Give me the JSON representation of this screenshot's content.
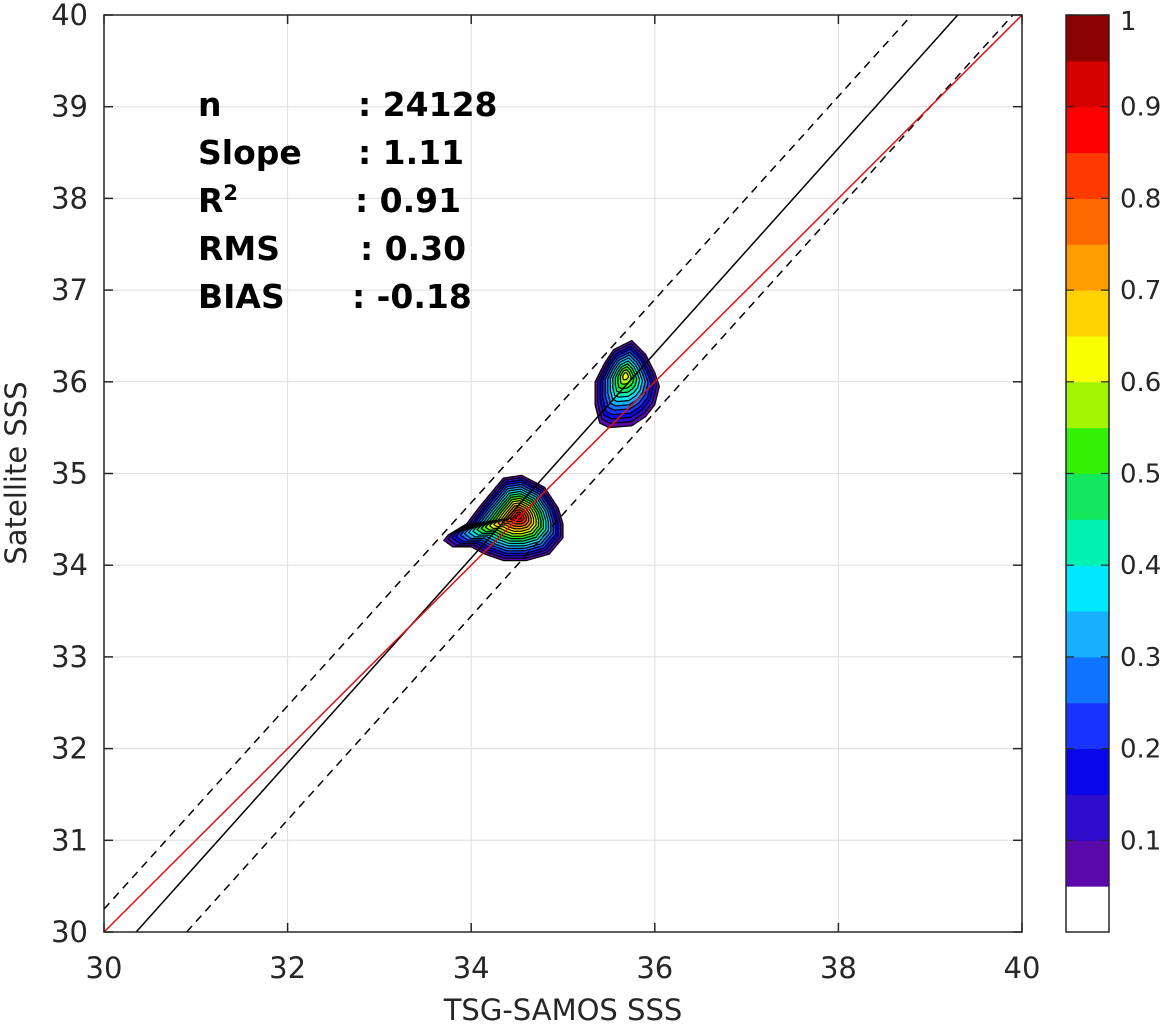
{
  "chart_data": {
    "type": "contour",
    "xlabel": "TSG-SAMOS SSS",
    "ylabel": "Satellite SSS",
    "xlim": [
      30,
      40
    ],
    "ylim": [
      30,
      40
    ],
    "x_ticks": [
      "30",
      "32",
      "34",
      "36",
      "38",
      "40"
    ],
    "y_ticks": [
      "30",
      "31",
      "32",
      "33",
      "34",
      "35",
      "36",
      "37",
      "38",
      "39",
      "40"
    ],
    "grid": true,
    "stats": [
      {
        "label": "n",
        "value": ": 24128"
      },
      {
        "label": "Slope",
        "value": ": 1.11"
      },
      {
        "label": "R",
        "sup": "2",
        "value": ": 0.91"
      },
      {
        "label": "RMS",
        "value": ": 0.30"
      },
      {
        "label": "BIAS",
        "value": ": -0.18"
      }
    ],
    "lines": [
      {
        "style": "solid",
        "color": "#000000",
        "x": [
          30.35,
          39.3
        ],
        "y": [
          30,
          40
        ]
      },
      {
        "style": "dashed",
        "color": "#000000",
        "x": [
          30,
          38.8
        ],
        "y": [
          30.25,
          40
        ]
      },
      {
        "style": "dashed",
        "color": "#000000",
        "x": [
          30.9,
          39.9
        ],
        "y": [
          30,
          40
        ]
      },
      {
        "style": "solid",
        "color": "#dd1111",
        "x": [
          30,
          40
        ],
        "y": [
          30,
          40
        ]
      }
    ],
    "clusters": [
      {
        "center_x": 34.52,
        "center_y": 34.53,
        "peak": 1.0,
        "outline_x": [
          33.75,
          33.95,
          34.1,
          34.35,
          34.55,
          34.8,
          34.95,
          35.0,
          35.0,
          34.85,
          34.6,
          34.35,
          34.15,
          34.0,
          33.8,
          33.7
        ],
        "outline_y": [
          34.33,
          34.45,
          34.65,
          34.95,
          34.98,
          34.85,
          34.62,
          34.45,
          34.3,
          34.12,
          34.05,
          34.05,
          34.12,
          34.2,
          34.2,
          34.27
        ]
      },
      {
        "center_x": 35.68,
        "center_y": 36.07,
        "peak": 0.65,
        "outline_x": [
          35.55,
          35.75,
          35.9,
          36.0,
          36.05,
          36.0,
          35.9,
          35.75,
          35.5,
          35.4,
          35.35,
          35.35,
          35.45
        ],
        "outline_y": [
          36.35,
          36.45,
          36.3,
          36.1,
          35.95,
          35.75,
          35.62,
          35.52,
          35.5,
          35.55,
          35.75,
          36.0,
          36.2
        ]
      }
    ],
    "colorbar": {
      "range": [
        0,
        1
      ],
      "tick_labels": [
        "0.1",
        "0.2",
        "0.3",
        "0.4",
        "0.5",
        "0.6",
        "0.7",
        "0.8",
        "0.9",
        "1"
      ],
      "colors": [
        "#ffffff",
        "#5a08a8",
        "#2e0ecc",
        "#0a06ea",
        "#1a34ff",
        "#0f74ff",
        "#17b0ff",
        "#00e8ff",
        "#00f2b0",
        "#13e85e",
        "#33f208",
        "#a3f504",
        "#f8ff00",
        "#ffd200",
        "#ff9c00",
        "#ff6800",
        "#ff3a00",
        "#ff0000",
        "#d40000",
        "#8b0000"
      ]
    }
  }
}
